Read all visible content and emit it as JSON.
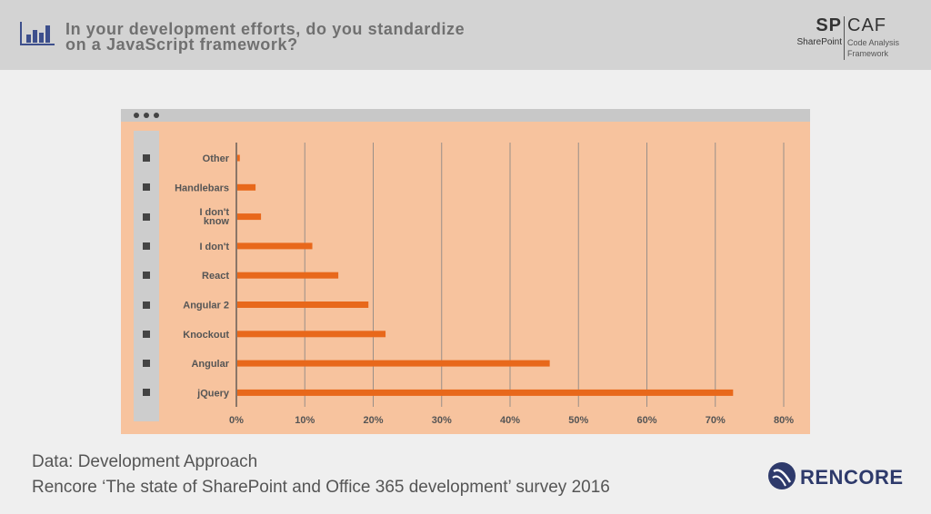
{
  "header": {
    "title_line1": "In your development efforts, do you standardize",
    "title_line2": "on a JavaScript framework?",
    "icon": "bar-chart-icon"
  },
  "logo": {
    "sp": "SP",
    "sp_caption": "SharePoint",
    "caf": "CAF",
    "caf_caption_line1": "Code Analysis",
    "caf_caption_line2": "Framework"
  },
  "footer": {
    "line1": "Data: Development Approach",
    "line2": "Rencore ‘The state of SharePoint and Office 365 development’ survey 2016",
    "brand": "RENCORE"
  },
  "colors": {
    "bar": "#e8681b",
    "plot_background": "#f7c39e",
    "gridline": "#9a8f88",
    "brand": "#2e3a6b"
  },
  "chart_data": {
    "type": "bar",
    "orientation": "horizontal",
    "categories": [
      "Other",
      "Handlebars",
      "I don't know",
      "I don't",
      "React",
      "Angular 2",
      "Knockout",
      "Angular",
      "jQuery"
    ],
    "category_labels": [
      [
        "Other"
      ],
      [
        "Handlebars"
      ],
      [
        "I don't",
        "know"
      ],
      [
        "I don't"
      ],
      [
        "React"
      ],
      [
        "Angular 2"
      ],
      [
        "Knockout"
      ],
      [
        "Angular"
      ],
      [
        "jQuery"
      ]
    ],
    "values": [
      0.5,
      2.8,
      3.6,
      11.1,
      14.9,
      19.3,
      21.8,
      45.8,
      72.6
    ],
    "xlim": [
      0,
      80
    ],
    "xticks": [
      0,
      10,
      20,
      30,
      40,
      50,
      60,
      70,
      80
    ],
    "xtick_labels": [
      "0%",
      "10%",
      "20%",
      "30%",
      "40%",
      "50%",
      "60%",
      "70%",
      "80%"
    ],
    "grid": true,
    "legend": "none"
  }
}
